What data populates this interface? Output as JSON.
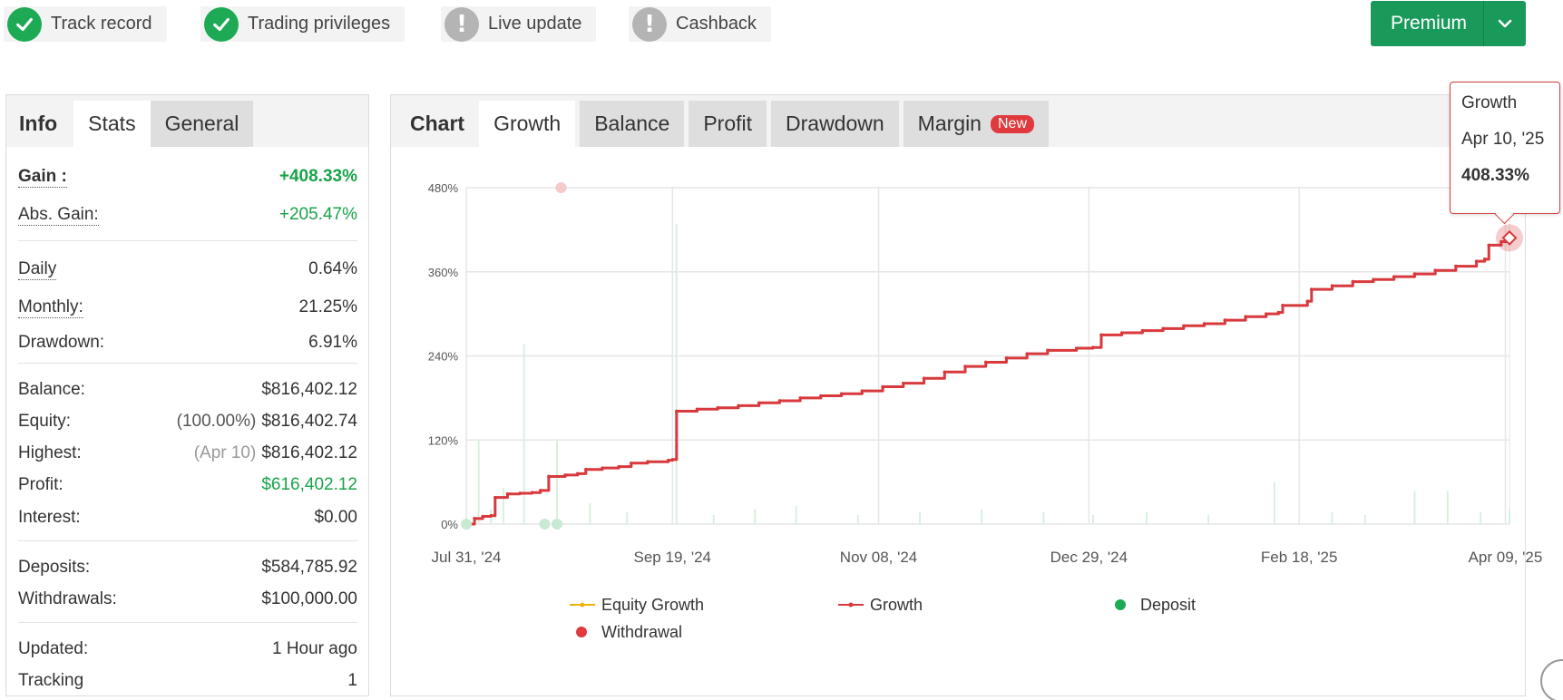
{
  "status_badges": [
    {
      "label": "Track record",
      "state": "ok"
    },
    {
      "label": "Trading privileges",
      "state": "ok"
    },
    {
      "label": "Live update",
      "state": "warn"
    },
    {
      "label": "Cashback",
      "state": "warn"
    }
  ],
  "premium": {
    "label": "Premium"
  },
  "left_tabs": [
    "Info",
    "Stats",
    "General"
  ],
  "stats": {
    "gain": {
      "label": "Gain :",
      "value": "+408.33%"
    },
    "abs_gain": {
      "label": "Abs. Gain:",
      "value": "+205.47%"
    },
    "daily": {
      "label": "Daily",
      "value": "0.64%"
    },
    "monthly": {
      "label": "Monthly:",
      "value": "21.25%"
    },
    "drawdown": {
      "label": "Drawdown:",
      "value": "6.91%"
    },
    "balance": {
      "label": "Balance:",
      "value": "$816,402.12"
    },
    "equity": {
      "label": "Equity:",
      "prefix": "(100.00%)",
      "value": "$816,402.74"
    },
    "highest": {
      "label": "Highest:",
      "prefix": "(Apr 10)",
      "value": "$816,402.12"
    },
    "profit": {
      "label": "Profit:",
      "value": "$616,402.12"
    },
    "interest": {
      "label": "Interest:",
      "value": "$0.00"
    },
    "deposits": {
      "label": "Deposits:",
      "value": "$584,785.92"
    },
    "withdrawals": {
      "label": "Withdrawals:",
      "value": "$100,000.00"
    },
    "updated": {
      "label": "Updated:",
      "value": "1 Hour ago"
    },
    "tracking": {
      "label": "Tracking",
      "value": "1"
    }
  },
  "chart_tabs": [
    "Chart",
    "Growth",
    "Balance",
    "Profit",
    "Drawdown",
    "Margin"
  ],
  "margin_badge": "New",
  "tooltip": {
    "series": "Growth",
    "date": "Apr 10, '25",
    "value": "408.33%"
  },
  "colors": {
    "growth": "#d8393c",
    "equity": "#f0b400",
    "deposit": "#1eaa55",
    "withdrawal": "#e03a3e",
    "accent": "#1a9a5a"
  },
  "chart_data": {
    "type": "line",
    "y_unit": "%",
    "ylim": [
      0,
      480
    ],
    "y_ticks": [
      0,
      120,
      240,
      360,
      480
    ],
    "y_tick_labels": [
      "0%",
      "120%",
      "240%",
      "360%",
      "480%"
    ],
    "x_tick_labels": [
      "Jul 31, '24",
      "Sep 19, '24",
      "Nov 08, '24",
      "Dec 29, '24",
      "Feb 18, '25",
      "Apr 09, '25"
    ],
    "x_tick_dates": [
      "2024-07-31",
      "2024-09-19",
      "2024-11-08",
      "2024-12-29",
      "2025-02-18",
      "2025-04-09"
    ],
    "xlim": [
      "2024-07-31",
      "2025-04-10"
    ],
    "legend": [
      "Equity Growth",
      "Growth",
      "Deposit",
      "Withdrawal"
    ],
    "legend_position": "bottom",
    "grid": true,
    "series": [
      {
        "name": "Growth",
        "points": [
          [
            "2024-07-31",
            0
          ],
          [
            "2024-08-02",
            8
          ],
          [
            "2024-08-04",
            11
          ],
          [
            "2024-08-06",
            12
          ],
          [
            "2024-08-07",
            38
          ],
          [
            "2024-08-10",
            43
          ],
          [
            "2024-08-13",
            44
          ],
          [
            "2024-08-16",
            45
          ],
          [
            "2024-08-18",
            48
          ],
          [
            "2024-08-20",
            68
          ],
          [
            "2024-08-24",
            70
          ],
          [
            "2024-08-27",
            72
          ],
          [
            "2024-08-29",
            78
          ],
          [
            "2024-09-02",
            80
          ],
          [
            "2024-09-06",
            82
          ],
          [
            "2024-09-09",
            87
          ],
          [
            "2024-09-13",
            89
          ],
          [
            "2024-09-18",
            91
          ],
          [
            "2024-09-19",
            92
          ],
          [
            "2024-09-20",
            161
          ],
          [
            "2024-09-25",
            164
          ],
          [
            "2024-09-30",
            166
          ],
          [
            "2024-10-05",
            169
          ],
          [
            "2024-10-10",
            173
          ],
          [
            "2024-10-15",
            176
          ],
          [
            "2024-10-20",
            180
          ],
          [
            "2024-10-25",
            183
          ],
          [
            "2024-10-30",
            186
          ],
          [
            "2024-11-04",
            190
          ],
          [
            "2024-11-09",
            196
          ],
          [
            "2024-11-14",
            201
          ],
          [
            "2024-11-19",
            208
          ],
          [
            "2024-11-24",
            217
          ],
          [
            "2024-11-29",
            225
          ],
          [
            "2024-12-04",
            231
          ],
          [
            "2024-12-09",
            237
          ],
          [
            "2024-12-14",
            243
          ],
          [
            "2024-12-19",
            248
          ],
          [
            "2024-12-26",
            251
          ],
          [
            "2024-12-30",
            252
          ],
          [
            "2025-01-01",
            270
          ],
          [
            "2025-01-06",
            273
          ],
          [
            "2025-01-11",
            276
          ],
          [
            "2025-01-16",
            279
          ],
          [
            "2025-01-21",
            283
          ],
          [
            "2025-01-26",
            286
          ],
          [
            "2025-01-31",
            291
          ],
          [
            "2025-02-05",
            296
          ],
          [
            "2025-02-10",
            300
          ],
          [
            "2025-02-13",
            302
          ],
          [
            "2025-02-14",
            312
          ],
          [
            "2025-02-20",
            318
          ],
          [
            "2025-02-21",
            335
          ],
          [
            "2025-02-26",
            340
          ],
          [
            "2025-03-03",
            346
          ],
          [
            "2025-03-08",
            349
          ],
          [
            "2025-03-13",
            353
          ],
          [
            "2025-03-18",
            357
          ],
          [
            "2025-03-23",
            362
          ],
          [
            "2025-03-28",
            368
          ],
          [
            "2025-04-02",
            375
          ],
          [
            "2025-04-04",
            378
          ],
          [
            "2025-04-05",
            398
          ],
          [
            "2025-04-08",
            403
          ],
          [
            "2025-04-10",
            408.33
          ]
        ]
      },
      {
        "name": "Equity Growth",
        "points": [
          [
            "2024-07-31",
            0
          ],
          [
            "2025-04-10",
            408.33
          ]
        ]
      }
    ],
    "deposits": [
      "2024-07-31",
      "2024-08-19",
      "2024-08-22"
    ],
    "withdrawals": [
      [
        "2024-08-23",
        480
      ]
    ]
  }
}
